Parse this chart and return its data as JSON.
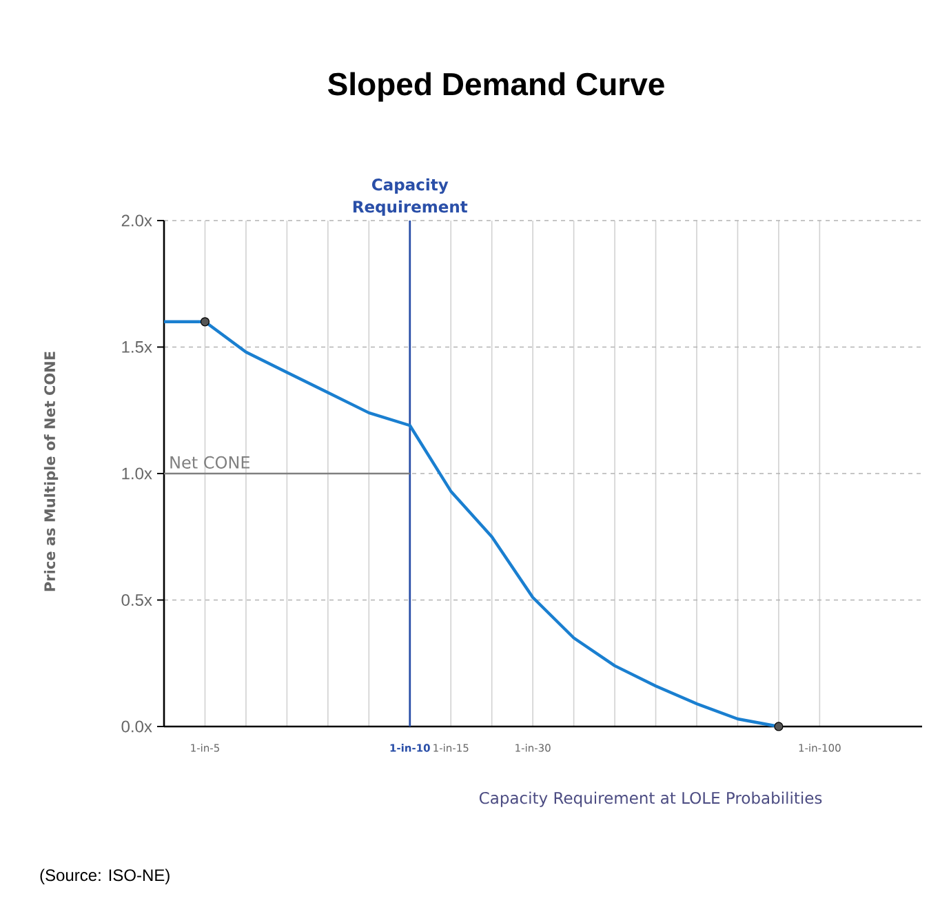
{
  "chart_data": {
    "type": "line",
    "title": "Sloped Demand Curve",
    "xlabel": "Capacity Requirement  at LOLE Probabilities",
    "ylabel": "Price as Multiple of Net CONE",
    "categories": [
      null,
      "1-in-5",
      null,
      null,
      null,
      null,
      "1-in-10",
      "1-in-15",
      null,
      "1-in-30",
      null,
      null,
      null,
      null,
      null,
      null,
      "1-in-100"
    ],
    "ylim": [
      0,
      2
    ],
    "yticks": [
      {
        "value": 0,
        "label": "0.0x"
      },
      {
        "value": 0.5,
        "label": "0.5x"
      },
      {
        "value": 1,
        "label": "1.0x"
      },
      {
        "value": 1.5,
        "label": "1.5x"
      },
      {
        "value": 2,
        "label": "2.0x"
      }
    ],
    "grid": true,
    "series": [
      {
        "color": "#1a7fd0",
        "values": [
          1.6,
          1.6,
          1.48,
          1.4,
          1.32,
          1.24,
          1.19,
          0.93,
          0.75,
          0.51,
          0.35,
          0.24,
          0.16,
          0.09,
          0.03,
          0,
          null
        ],
        "marker": "none"
      },
      {
        "type": "line",
        "name": "Net CONE",
        "color": "#808080",
        "values": [
          1,
          1,
          1,
          1,
          1,
          1,
          1,
          null,
          null,
          null,
          null,
          null,
          null,
          null,
          null,
          null,
          null
        ],
        "marker": "none"
      },
      {
        "type": "scatter",
        "color": "#555555",
        "values": [
          null,
          1.6,
          null,
          null,
          null,
          null,
          null,
          null,
          null,
          null,
          null,
          null,
          null,
          null,
          null,
          0,
          null
        ],
        "marker": "circle"
      }
    ],
    "ref_lines": [
      {
        "axis": "x",
        "value": "1-in-10",
        "label": "Capacity Requirement",
        "color": "#2a4fa8"
      }
    ],
    "annotations": [
      "(Source: ISO-NE)"
    ]
  }
}
